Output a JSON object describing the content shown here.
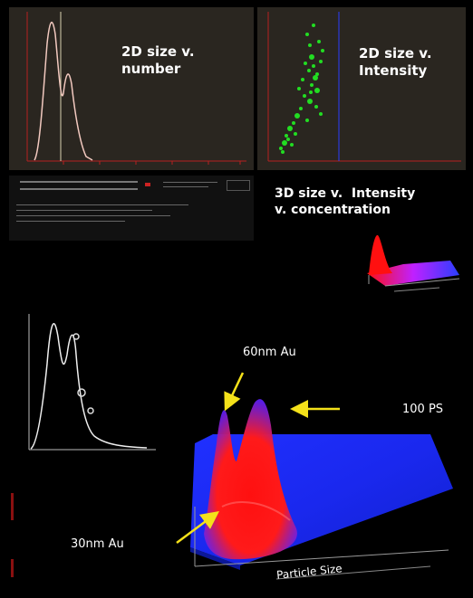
{
  "labels": {
    "size_number": "2D size v.\nnumber",
    "size_intensity": "2D size v.\nIntensity",
    "size_3d": "3D size v.  Intensity\nv. concentration"
  },
  "annotations": {
    "au60": "60nm Au",
    "ps100": "100 PS",
    "au30": "30nm Au",
    "particle_size": "Particle Size"
  },
  "colors": {
    "panel_bg": "#2a2620",
    "curve": "#f2c9bf",
    "axis": "#b52020",
    "scatter": "#22dd22",
    "blue_surface": "#1a2fff",
    "red_peaks": "#ff1010",
    "arrow": "#f4e11a"
  }
}
